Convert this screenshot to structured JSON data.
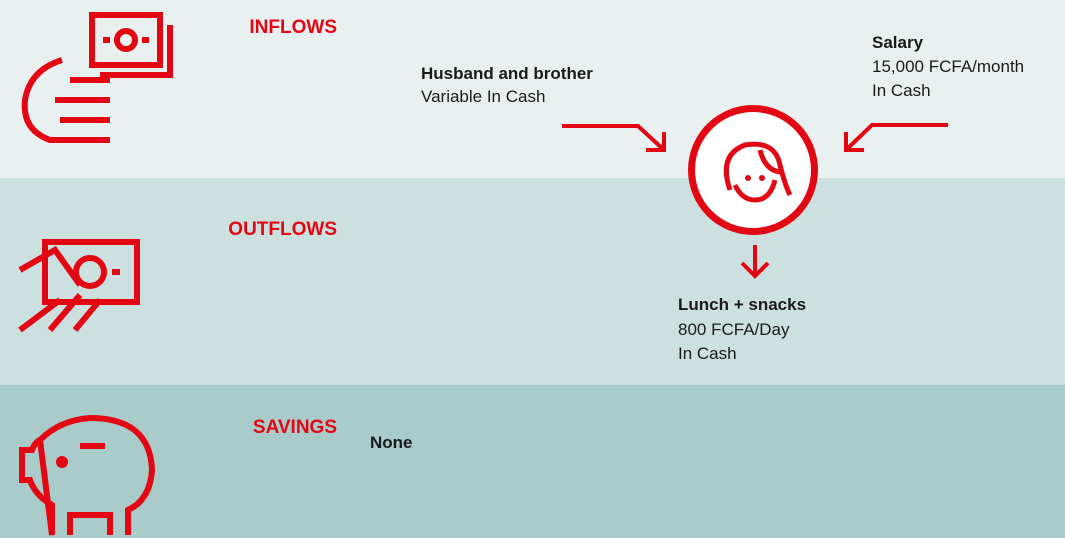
{
  "sections": {
    "inflows": {
      "label": "INFLOWS",
      "items": [
        {
          "title": "Husband and brother",
          "lines": [
            "Variable In Cash"
          ]
        },
        {
          "title": "Salary",
          "lines": [
            "15,000 FCFA/month",
            "In Cash"
          ]
        }
      ]
    },
    "outflows": {
      "label": "OUTFLOWS",
      "items": [
        {
          "title": "Lunch + snacks",
          "lines": [
            "800 FCFA/Day",
            "In Cash"
          ]
        }
      ]
    },
    "savings": {
      "label": "SAVINGS",
      "items": [
        {
          "title": "None"
        }
      ]
    }
  }
}
